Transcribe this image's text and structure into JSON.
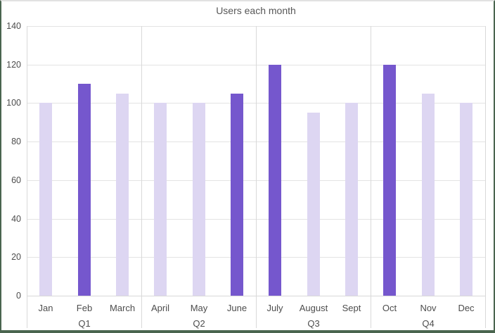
{
  "chart_data": {
    "type": "bar",
    "title": "Users each month",
    "categories": [
      "Jan",
      "Feb",
      "March",
      "April",
      "May",
      "June",
      "July",
      "August",
      "Sept",
      "Oct",
      "Nov",
      "Dec"
    ],
    "values": [
      100,
      110,
      105,
      100,
      100,
      105,
      120,
      95,
      100,
      120,
      105,
      100
    ],
    "highlighted_categories": [
      "Feb",
      "June",
      "July",
      "Oct"
    ],
    "groups": [
      {
        "label": "Q1",
        "categories": [
          "Jan",
          "Feb",
          "March"
        ]
      },
      {
        "label": "Q2",
        "categories": [
          "April",
          "May",
          "June"
        ]
      },
      {
        "label": "Q3",
        "categories": [
          "July",
          "August",
          "Sept"
        ]
      },
      {
        "label": "Q4",
        "categories": [
          "Oct",
          "Nov",
          "Dec"
        ]
      }
    ],
    "xlabel": "",
    "ylabel": "",
    "ylim": [
      0,
      140
    ],
    "ytick_step": 20,
    "ytick_labels": [
      "0",
      "20",
      "40",
      "60",
      "80",
      "100",
      "120",
      "140"
    ],
    "grid": true,
    "legend_position": "none",
    "colors": {
      "bar_normal": "#ddd6f2",
      "bar_highlight": "#7557cd",
      "gridline": "#e3e3e3",
      "axis_line": "#d9d9d9",
      "label_text": "#4d4d4d",
      "title_text": "#575757",
      "frame_border": "#4a654f",
      "frame_border_top": "#e2e2e2"
    }
  }
}
